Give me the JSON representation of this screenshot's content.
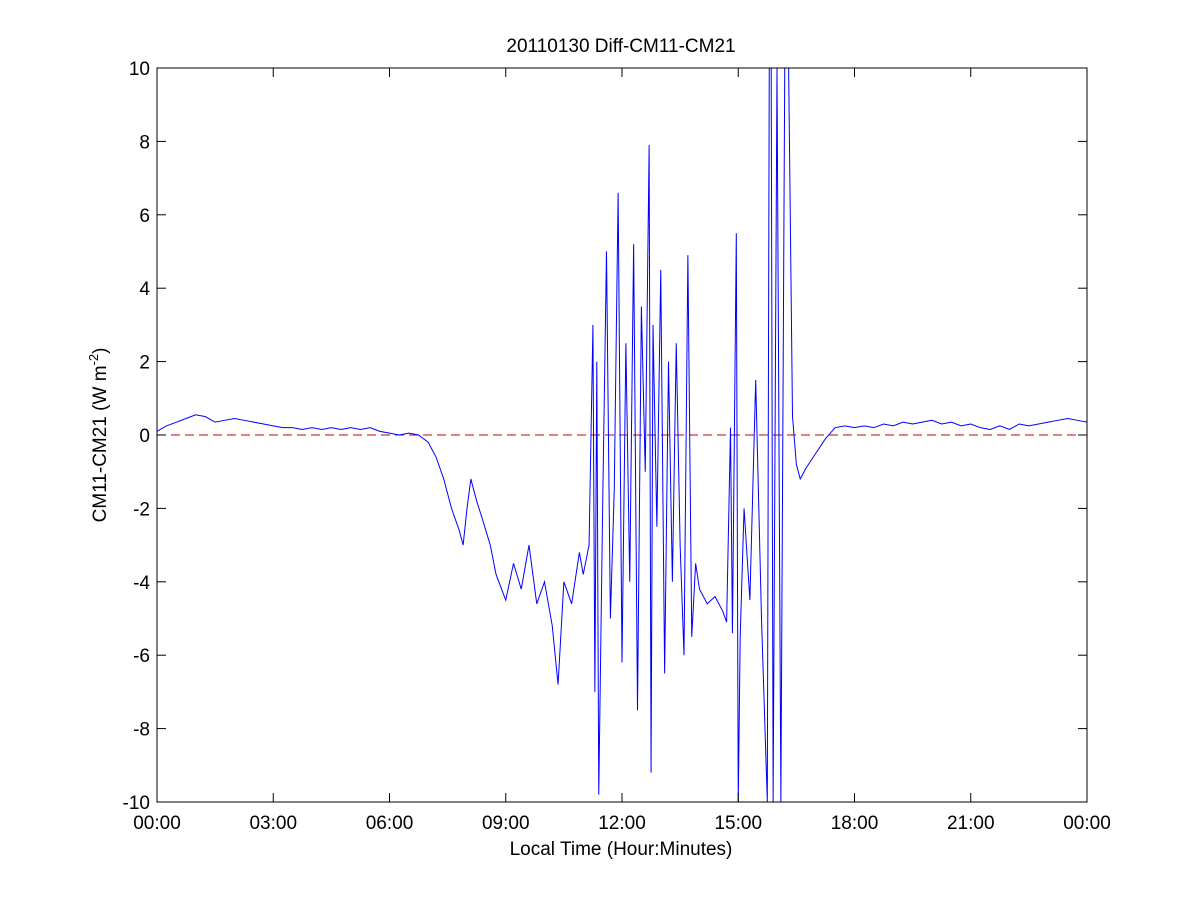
{
  "chart_data": {
    "type": "line",
    "title": "20110130 Diff-CM11-CM21",
    "xlabel": "Local Time (Hour:Minutes)",
    "ylabel": {
      "main": "CM11-CM21 (W m",
      "superscript": "-2",
      "close": ")"
    },
    "xlim": [
      0,
      24
    ],
    "ylim": [
      -10,
      10
    ],
    "x_ticks": [
      0,
      3,
      6,
      9,
      12,
      15,
      18,
      21,
      24
    ],
    "x_tick_labels": [
      "00:00",
      "03:00",
      "06:00",
      "09:00",
      "12:00",
      "15:00",
      "18:00",
      "21:00",
      "00:00"
    ],
    "y_ticks": [
      -10,
      -8,
      -6,
      -4,
      -2,
      0,
      2,
      4,
      6,
      8,
      10
    ],
    "y_tick_labels": [
      "-10",
      "-8",
      "-6",
      "-4",
      "-2",
      "0",
      "2",
      "4",
      "6",
      "8",
      "10"
    ],
    "grid": false,
    "legend": "none",
    "reference_line": {
      "y": 0,
      "color": "#cc0000",
      "style": "dashed"
    },
    "series": [
      {
        "color": "#0000ff",
        "x": [
          0,
          0.25,
          0.5,
          0.75,
          1.0,
          1.25,
          1.5,
          1.75,
          2.0,
          2.25,
          2.5,
          2.75,
          3.0,
          3.25,
          3.5,
          3.75,
          4.0,
          4.25,
          4.5,
          4.75,
          5.0,
          5.25,
          5.5,
          5.75,
          6.0,
          6.25,
          6.5,
          6.75,
          7.0,
          7.2,
          7.4,
          7.6,
          7.8,
          7.9,
          8.0,
          8.1,
          8.25,
          8.4,
          8.6,
          8.75,
          9.0,
          9.2,
          9.4,
          9.6,
          9.8,
          10.0,
          10.2,
          10.35,
          10.5,
          10.7,
          10.9,
          11.0,
          11.15,
          11.25,
          11.3,
          11.35,
          11.4,
          11.5,
          11.6,
          11.7,
          11.8,
          11.9,
          12.0,
          12.1,
          12.2,
          12.3,
          12.4,
          12.5,
          12.6,
          12.7,
          12.75,
          12.8,
          12.9,
          13.0,
          13.1,
          13.2,
          13.3,
          13.4,
          13.5,
          13.6,
          13.7,
          13.8,
          13.9,
          14.0,
          14.2,
          14.4,
          14.6,
          14.7,
          14.8,
          14.85,
          14.95,
          15.0,
          15.05,
          15.15,
          15.3,
          15.45,
          15.6,
          15.75,
          15.8,
          15.85,
          15.9,
          16.0,
          16.1,
          16.2,
          16.3,
          16.4,
          16.5,
          16.6,
          16.75,
          17.0,
          17.25,
          17.5,
          17.75,
          18.0,
          18.25,
          18.5,
          18.75,
          19.0,
          19.25,
          19.5,
          19.75,
          20.0,
          20.25,
          20.5,
          20.75,
          21.0,
          21.25,
          21.5,
          21.75,
          22.0,
          22.25,
          22.5,
          22.75,
          23.0,
          23.25,
          23.5,
          23.75,
          24.0
        ],
        "y": [
          0.1,
          0.25,
          0.35,
          0.45,
          0.55,
          0.5,
          0.35,
          0.4,
          0.45,
          0.4,
          0.35,
          0.3,
          0.25,
          0.2,
          0.2,
          0.15,
          0.2,
          0.15,
          0.2,
          0.15,
          0.2,
          0.15,
          0.2,
          0.1,
          0.05,
          0.0,
          0.05,
          0.0,
          -0.2,
          -0.6,
          -1.2,
          -2.0,
          -2.6,
          -3.0,
          -2.0,
          -1.2,
          -1.8,
          -2.3,
          -3.0,
          -3.8,
          -4.5,
          -3.5,
          -4.2,
          -3.0,
          -4.6,
          -4.0,
          -5.2,
          -6.8,
          -4.0,
          -4.6,
          -3.2,
          -3.8,
          -3.0,
          3.0,
          -7.0,
          2.0,
          -9.8,
          -2.0,
          5.0,
          -5.0,
          -1.5,
          6.6,
          -6.2,
          2.5,
          -4.0,
          5.2,
          -7.5,
          3.5,
          -1.0,
          7.9,
          -9.2,
          3.0,
          -2.5,
          4.5,
          -6.5,
          2.0,
          -4.0,
          2.5,
          -3.0,
          -6.0,
          4.9,
          -5.5,
          -3.5,
          -4.2,
          -4.6,
          -4.4,
          -4.8,
          -5.1,
          0.2,
          -5.4,
          5.5,
          -10.0,
          -5.5,
          -2.0,
          -4.5,
          1.5,
          -5.0,
          -10.0,
          10.0,
          10.0,
          -10.0,
          10.0,
          -10.0,
          10.0,
          10.0,
          0.5,
          -0.8,
          -1.2,
          -0.9,
          -0.5,
          -0.1,
          0.2,
          0.25,
          0.2,
          0.25,
          0.2,
          0.3,
          0.25,
          0.35,
          0.3,
          0.35,
          0.4,
          0.3,
          0.35,
          0.25,
          0.3,
          0.2,
          0.15,
          0.25,
          0.15,
          0.3,
          0.25,
          0.3,
          0.35,
          0.4,
          0.45,
          0.4,
          0.35
        ]
      }
    ]
  }
}
